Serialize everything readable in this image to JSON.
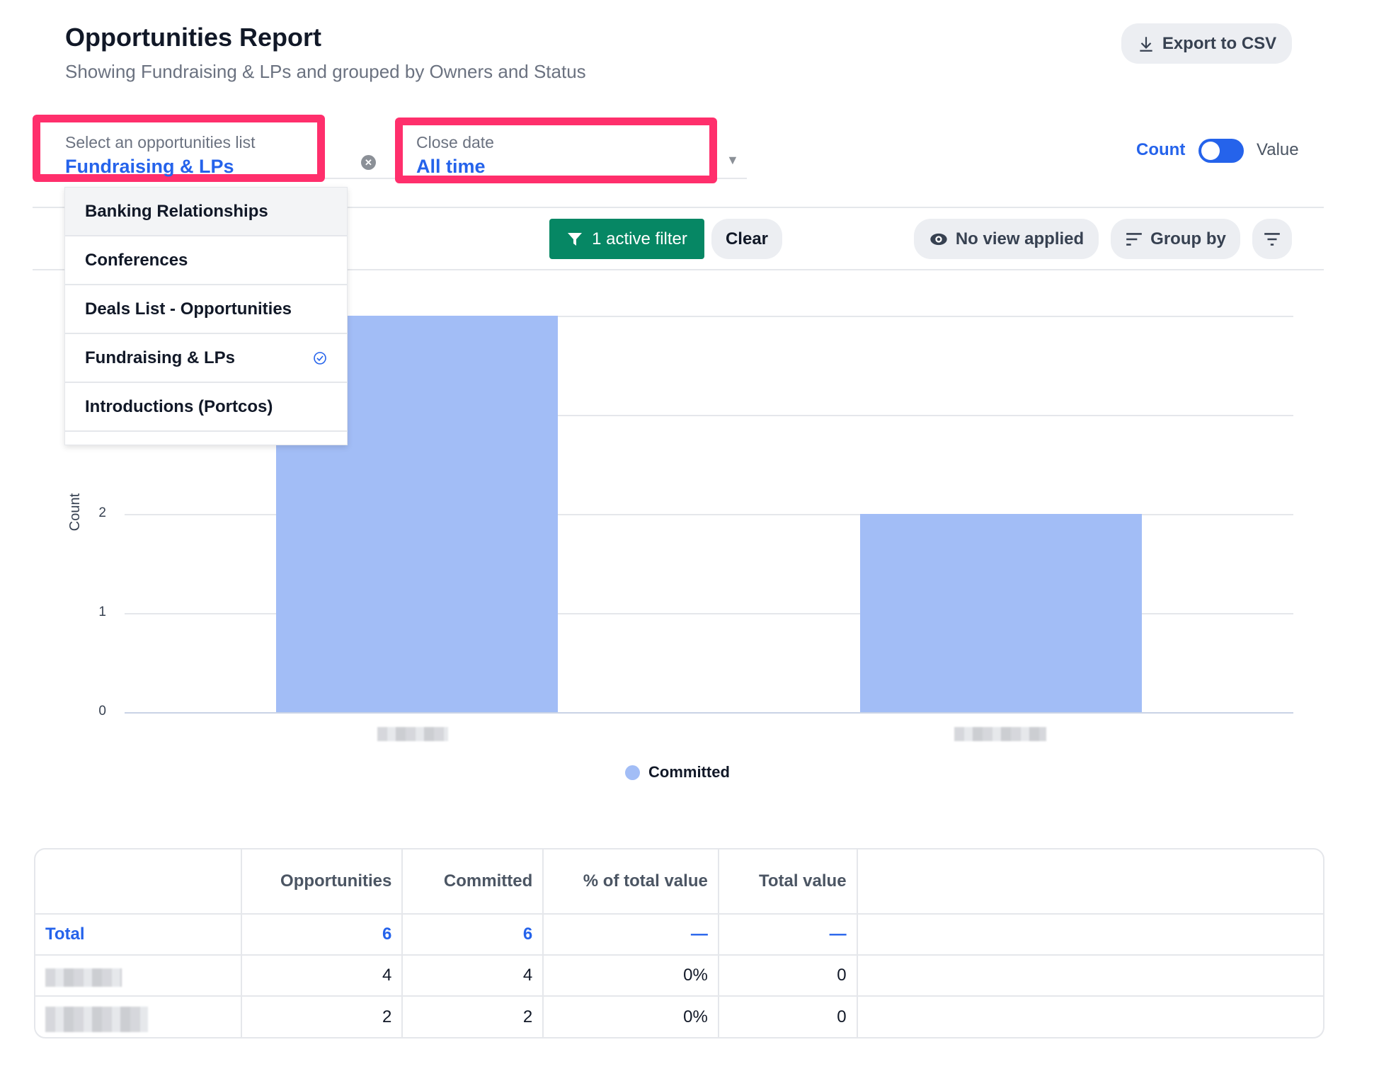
{
  "header": {
    "title": "Opportunities Report",
    "subtitle": "Showing Fundraising & LPs and grouped by Owners and Status",
    "export_label": "Export to CSV"
  },
  "filters": {
    "list_label": "Select an opportunities list",
    "list_value": "Fundraising & LPs",
    "date_label": "Close date",
    "date_value": "All time"
  },
  "toggle": {
    "left_label": "Count",
    "right_label": "Value",
    "selected": "Count"
  },
  "toolbar": {
    "active_filter_label": "1 active filter",
    "clear_label": "Clear",
    "view_label": "No view applied",
    "group_by_label": "Group by"
  },
  "dropdown": {
    "items": [
      {
        "label": "Banking Relationships",
        "selected": false
      },
      {
        "label": "Conferences",
        "selected": false
      },
      {
        "label": "Deals List - Opportunities",
        "selected": false
      },
      {
        "label": "Fundraising & LPs",
        "selected": true
      },
      {
        "label": "Introductions (Portcos)",
        "selected": false
      }
    ]
  },
  "chart_data": {
    "type": "bar",
    "ylabel": "Count",
    "yticks": [
      "0",
      "1",
      "2"
    ],
    "ylim": [
      0,
      4
    ],
    "series": [
      {
        "name": "Committed",
        "color": "#a2bdf6",
        "values": [
          4,
          2
        ]
      }
    ],
    "legend": "bottom-center",
    "grid": true
  },
  "table": {
    "headers": [
      "Opportunities",
      "Committed",
      "% of total value",
      "Total value"
    ],
    "total": {
      "label": "Total",
      "values": [
        "6",
        "6",
        "—",
        "—"
      ]
    },
    "rows": [
      {
        "values": [
          "4",
          "4",
          "0%",
          "0"
        ]
      },
      {
        "values": [
          "2",
          "2",
          "0%",
          "0"
        ]
      }
    ]
  },
  "colors": {
    "accent": "#2563eb",
    "filter_green": "#068764",
    "highlight": "#ff2f6c",
    "bar": "#a2bdf6"
  }
}
